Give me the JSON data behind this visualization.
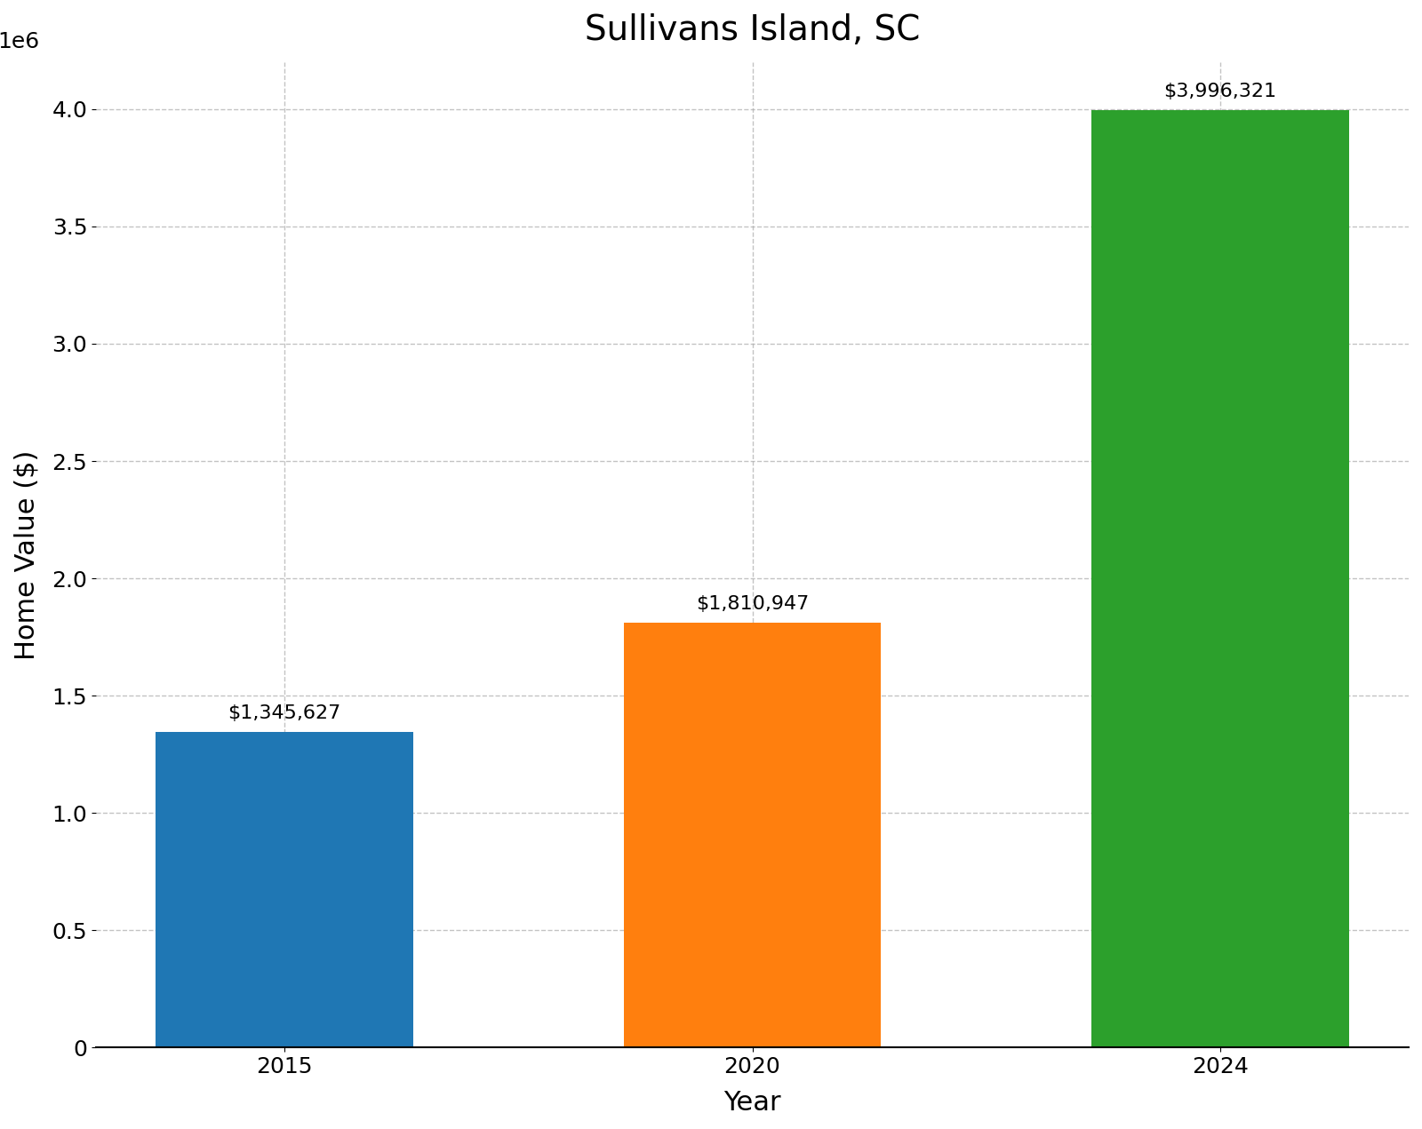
{
  "title": "Sullivans Island, SC",
  "xlabel": "Year",
  "ylabel": "Home Value ($)",
  "categories": [
    "2015",
    "2020",
    "2024"
  ],
  "values": [
    1345627,
    1810947,
    3996321
  ],
  "bar_colors": [
    "#1f77b4",
    "#ff7f0e",
    "#2ca02c"
  ],
  "bar_labels": [
    "$1,345,627",
    "$1,810,947",
    "$3,996,321"
  ],
  "ylim": [
    0,
    4200000
  ],
  "yticks": [
    0,
    500000,
    1000000,
    1500000,
    2000000,
    2500000,
    3000000,
    3500000,
    4000000
  ],
  "title_fontsize": 28,
  "axis_label_fontsize": 22,
  "tick_fontsize": 18,
  "bar_label_fontsize": 16,
  "background_color": "#ffffff",
  "grid_color": "#aaaaaa",
  "grid_style": "--",
  "grid_alpha": 0.7
}
